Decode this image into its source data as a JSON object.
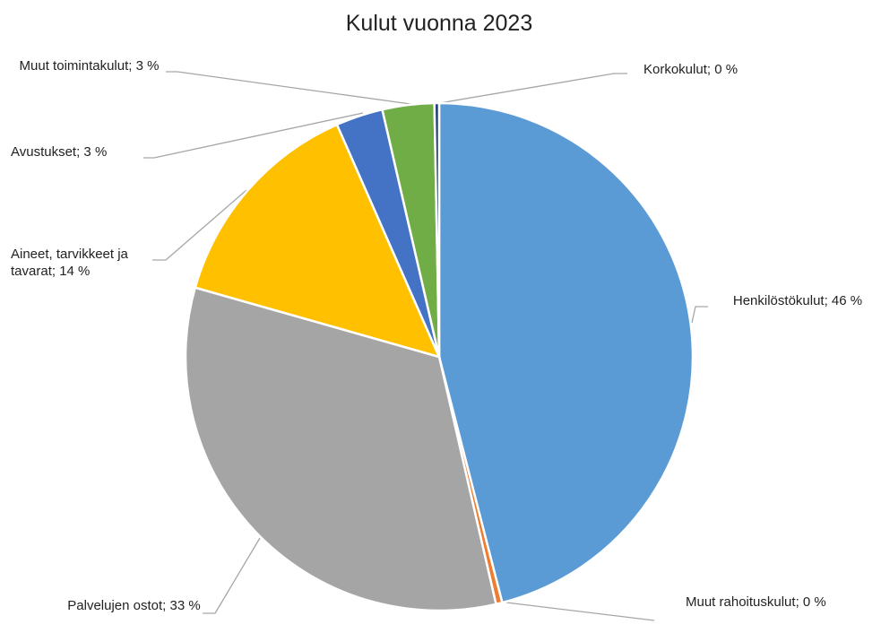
{
  "chart_data": {
    "type": "pie",
    "title": "Kulut vuonna 2023",
    "values": [
      46,
      0.4,
      33,
      14,
      3,
      3.3,
      0.3
    ],
    "value_labels": [
      "Henkilöstökulut; 46 %",
      "Muut rahoituskulut; 0 %",
      "Palvelujen ostot; 33 %",
      "Aineet, tarvikkeet ja tavarat; 14 %",
      "Avustukset; 3 %",
      "Muut toimintakulut; 3 %",
      "Korkokulut; 0 %"
    ],
    "colors": [
      "#5b9bd5",
      "#ed7d31",
      "#a5a5a5",
      "#ffc000",
      "#4472c4",
      "#70ad47",
      "#264478"
    ]
  }
}
